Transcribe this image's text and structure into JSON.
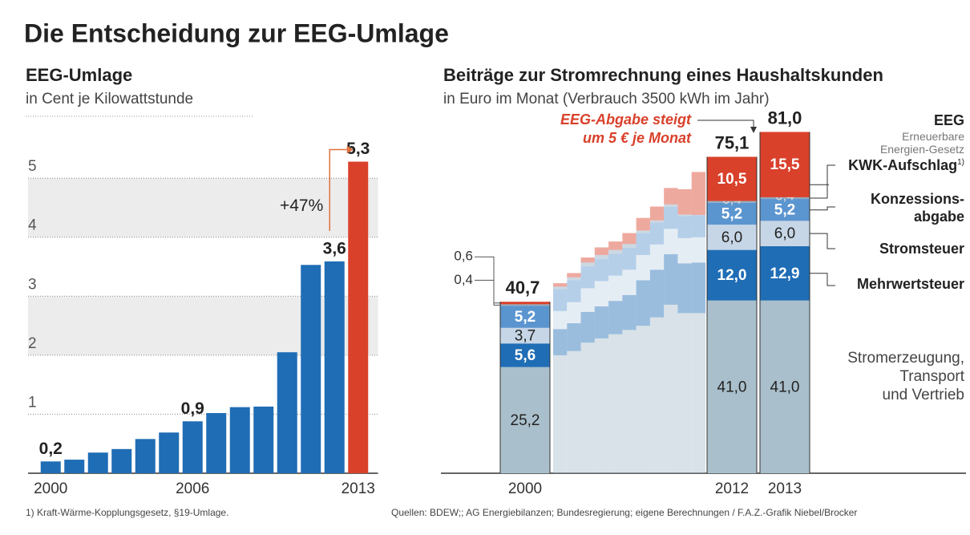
{
  "title": "Die Entscheidung zur EEG-Umlage",
  "footnote": "1) Kraft-Wärme-Kopplungsgesetz, §19-Umlage.",
  "source": "Quellen:  BDEW;; AG Energiebilanzen; Bundesregierung; eigene Berechnungen / F.A.Z.-Grafik Niebel/Brocker",
  "chart_data": [
    {
      "type": "bar",
      "title": "EEG-Umlage",
      "subtitle": "in Cent je Kilowattstunde",
      "categories": [
        "2000",
        null,
        null,
        null,
        null,
        null,
        "2006",
        null,
        null,
        null,
        null,
        null,
        null,
        "2013"
      ],
      "values": [
        0.2,
        0.23,
        0.35,
        0.41,
        0.58,
        0.69,
        0.88,
        1.02,
        1.12,
        1.13,
        2.05,
        3.53,
        3.59,
        5.28
      ],
      "value_labels": [
        "0,2",
        null,
        null,
        null,
        null,
        null,
        "0,9",
        null,
        null,
        null,
        null,
        null,
        "3,6",
        "5,3"
      ],
      "colors": [
        "#1f6db5",
        "#1f6db5",
        "#1f6db5",
        "#1f6db5",
        "#1f6db5",
        "#1f6db5",
        "#1f6db5",
        "#1f6db5",
        "#1f6db5",
        "#1f6db5",
        "#1f6db5",
        "#1f6db5",
        "#1f6db5",
        "#d9412b"
      ],
      "ylim": [
        0,
        5.6
      ],
      "yticks": [
        1,
        2,
        3,
        4,
        5
      ],
      "grid": true,
      "annotation": "+47%"
    },
    {
      "type": "stacked_bar",
      "title": "Beiträge zur Stromrechnung eines Haushaltskunden",
      "subtitle": "in Euro im Monat (Verbrauch 3500 kWh im Jahr)",
      "annotation": "EEG-Abgabe steigt\num 5 € je Monat",
      "categories": [
        "2000",
        null,
        null,
        null,
        null,
        null,
        null,
        null,
        null,
        null,
        null,
        null,
        "2012",
        "2013"
      ],
      "ylim": [
        0,
        85
      ],
      "totals": [
        40.7,
        null,
        null,
        null,
        null,
        null,
        null,
        null,
        null,
        null,
        null,
        null,
        75.1,
        81.0
      ],
      "total_labels": [
        "40,7",
        null,
        null,
        null,
        null,
        null,
        null,
        null,
        null,
        null,
        null,
        null,
        "75,1",
        "81,0"
      ],
      "series": [
        {
          "name": "Stromerzeugung,\nTransport\nund Vertrieb",
          "color": "#a9bfcb",
          "values": [
            25.2,
            28,
            29,
            31,
            32,
            33,
            34,
            35,
            37,
            40,
            38,
            38,
            41.0,
            41.0
          ],
          "value_labels": [
            "25,2",
            null,
            null,
            null,
            null,
            null,
            null,
            null,
            null,
            null,
            null,
            null,
            "41,0",
            "41,0"
          ]
        },
        {
          "name": "Mehrwertsteuer",
          "color": "#1f6db5",
          "values": [
            5.6,
            6.2,
            6.6,
            7.3,
            7.6,
            7.9,
            8.3,
            10.8,
            11.3,
            12,
            11.8,
            12,
            12.0,
            12.9
          ],
          "value_labels": [
            "5,6",
            null,
            null,
            null,
            null,
            null,
            null,
            null,
            null,
            null,
            null,
            null,
            "12,0",
            "12,9"
          ]
        },
        {
          "name": "Stromsteuer",
          "color": "#c6d6e6",
          "values": [
            3.7,
            4.3,
            5.0,
            5.6,
            6.0,
            6.0,
            6.0,
            6.0,
            6.0,
            6.0,
            6.0,
            6.0,
            6.0,
            6.0
          ],
          "value_labels": [
            "3,7",
            null,
            null,
            null,
            null,
            null,
            null,
            null,
            null,
            null,
            null,
            null,
            "6,0",
            "6,0"
          ]
        },
        {
          "name": "Konzessions-\nabgabe",
          "color": "#5b95cf",
          "values": [
            5.2,
            5.2,
            5.2,
            5.2,
            5.2,
            5.2,
            5.2,
            5.2,
            5.2,
            5.2,
            5.2,
            5.2,
            5.2,
            5.2
          ],
          "value_labels": [
            "5,2",
            null,
            null,
            null,
            null,
            null,
            null,
            null,
            null,
            null,
            null,
            null,
            "5,2",
            "5,2"
          ]
        },
        {
          "name": "KWK-Aufschlag",
          "footnote_mark": "1)",
          "color": "#8fa9bf",
          "values": [
            0.4,
            0.6,
            0.7,
            0.9,
            1.0,
            0.9,
            0.9,
            0.6,
            0.5,
            0.6,
            0.4,
            0.1,
            0.4,
            0.4
          ],
          "value_labels": [
            "0,4",
            null,
            null,
            null,
            null,
            null,
            null,
            null,
            null,
            null,
            null,
            null,
            "0,4",
            "0,4"
          ]
        },
        {
          "name": "EEG",
          "description": "Erneuerbare\nEnergien-Gesetz",
          "color": "#d9412b",
          "values": [
            0.6,
            0.8,
            1.0,
            1.2,
            1.8,
            2.0,
            2.6,
            3.0,
            3.3,
            3.9,
            6.0,
            10.2,
            10.5,
            15.5
          ],
          "value_labels": [
            "0,6",
            null,
            null,
            null,
            null,
            null,
            null,
            null,
            null,
            null,
            null,
            null,
            "10,5",
            "15,5"
          ]
        }
      ]
    }
  ]
}
